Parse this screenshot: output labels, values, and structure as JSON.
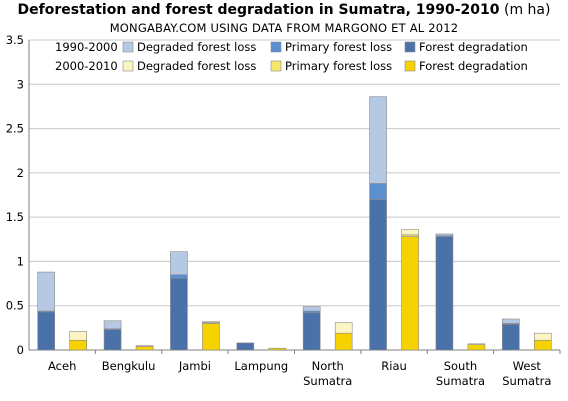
{
  "chart_data": {
    "type": "bar",
    "stacked": true,
    "title": "Deforestation and forest degradation in Sumatra, 1990-2010",
    "title_unit": "(m ha)",
    "subtitle": "MONGABAY.COM USING DATA FROM MARGONO ET AL 2012",
    "ylim": [
      0,
      3.5
    ],
    "yticks": [
      "0",
      "0.5",
      "1",
      "1.5",
      "2",
      "2.5",
      "3",
      "3.5"
    ],
    "grid": true,
    "legend_position": "top",
    "categories": [
      [
        "Aceh"
      ],
      [
        "Bengkulu"
      ],
      [
        "Jambi"
      ],
      [
        "Lampung"
      ],
      [
        "North",
        "Sumatra"
      ],
      [
        "Riau"
      ],
      [
        "South",
        "Sumatra"
      ],
      [
        "West",
        "Sumatra"
      ]
    ],
    "periods": [
      {
        "label": "1990-2000",
        "series": [
          {
            "name": "Forest degradation",
            "color": "#4a72a8",
            "values": [
              0.43,
              0.23,
              0.81,
              0.08,
              0.42,
              1.7,
              1.28,
              0.29
            ]
          },
          {
            "name": "Primary forest loss",
            "color": "#5b8fd0",
            "values": [
              0.01,
              0.01,
              0.04,
              0.0,
              0.02,
              0.18,
              0.01,
              0.01
            ]
          },
          {
            "name": "Degraded forest loss",
            "color": "#b5c8e4",
            "values": [
              0.44,
              0.09,
              0.26,
              0.0,
              0.05,
              0.98,
              0.02,
              0.05
            ]
          }
        ]
      },
      {
        "label": "2000-2010",
        "series": [
          {
            "name": "Forest degradation",
            "color": "#f5d200",
            "values": [
              0.11,
              0.04,
              0.3,
              0.02,
              0.19,
              1.28,
              0.06,
              0.11
            ]
          },
          {
            "name": "Primary forest loss",
            "color": "#f7e86a",
            "values": [
              0.0,
              0.0,
              0.01,
              0.0,
              0.0,
              0.02,
              0.0,
              0.0
            ]
          },
          {
            "name": "Degraded forest loss",
            "color": "#fbf5c4",
            "values": [
              0.1,
              0.01,
              0.01,
              0.0,
              0.12,
              0.06,
              0.01,
              0.08
            ]
          }
        ]
      }
    ]
  },
  "legend": {
    "rows": [
      {
        "period": "1990-2000",
        "items": [
          {
            "label": "Degraded forest loss",
            "color": "#b5c8e4"
          },
          {
            "label": "Primary forest loss",
            "color": "#5b8fd0"
          },
          {
            "label": "Forest degradation",
            "color": "#4a72a8"
          }
        ]
      },
      {
        "period": "2000-2010",
        "items": [
          {
            "label": "Degraded forest loss",
            "color": "#fbf5c4"
          },
          {
            "label": "Primary forest loss",
            "color": "#f7e86a"
          },
          {
            "label": "Forest degradation",
            "color": "#f5d200"
          }
        ]
      }
    ]
  }
}
